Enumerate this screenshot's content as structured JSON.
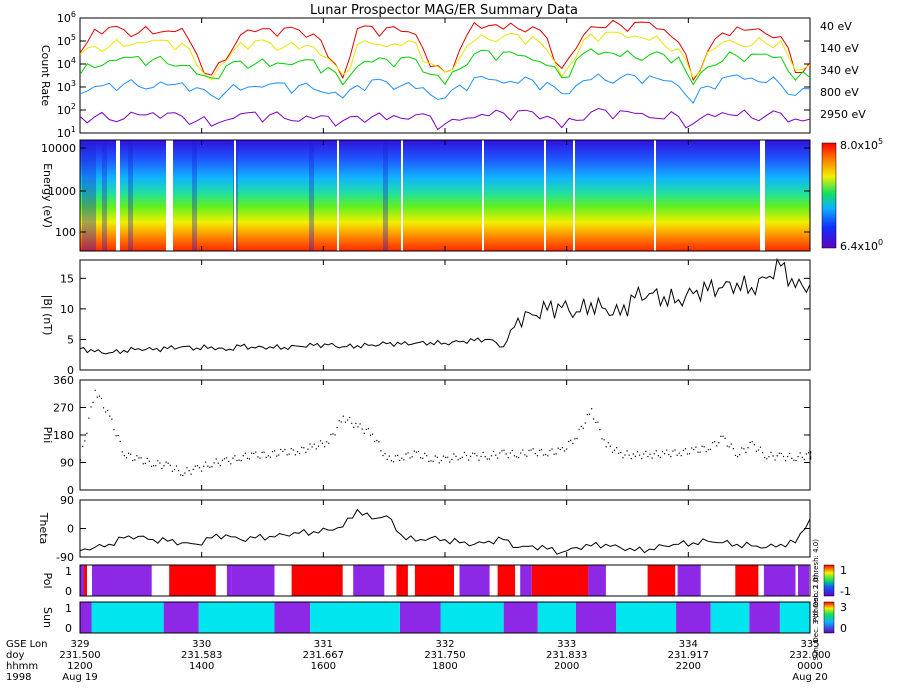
{
  "chart_data": {
    "title": "Lunar Prospector MAG/ER Summary Data",
    "panels": [
      {
        "type": "line",
        "ylabel": "Count Rate",
        "yscale": "log",
        "ylim": [
          10,
          1000000
        ],
        "yticks": [
          {
            "value": 10,
            "base": "10",
            "exp": "1"
          },
          {
            "value": 100,
            "base": "10",
            "exp": "2"
          },
          {
            "value": 1000,
            "base": "10",
            "exp": "3"
          },
          {
            "value": 10000,
            "base": "10",
            "exp": "4"
          },
          {
            "value": 100000,
            "base": "10",
            "exp": "5"
          },
          {
            "value": 1000000,
            "base": "10",
            "exp": "6"
          }
        ],
        "x": [
          0,
          2,
          4,
          6,
          8,
          10,
          12,
          14,
          16,
          18,
          20,
          22,
          24,
          26,
          28,
          30,
          32,
          34,
          36,
          38,
          40,
          42,
          44,
          46,
          48,
          50,
          52,
          54,
          56,
          58,
          60,
          62,
          64,
          66,
          68,
          70,
          72,
          74,
          76,
          78,
          80,
          82,
          84,
          86,
          88,
          90,
          92,
          94,
          96,
          98,
          100
        ],
        "series": [
          {
            "name": "40 eV",
            "color": "#e00000",
            "values": [
              30000,
              250000,
              300000,
              300000,
              310000,
              300000,
              290000,
              280000,
              20000,
              3000,
              20000,
              280000,
              290000,
              280000,
              270000,
              260000,
              250000,
              30000,
              3000,
              300000,
              320000,
              310000,
              300000,
              290000,
              10000,
              4000,
              30000,
              500000,
              500000,
              490000,
              480000,
              400000,
              100000,
              5000,
              50000,
              600000,
              550000,
              520000,
              500000,
              480000,
              300000,
              120000,
              3000,
              40000,
              180000,
              300000,
              280000,
              260000,
              240000,
              5000,
              10000
            ]
          },
          {
            "name": "140 eV",
            "color": "#e8e800",
            "values": [
              20000,
              60000,
              80000,
              85000,
              90000,
              85000,
              80000,
              75000,
              12000,
              3000,
              15000,
              70000,
              75000,
              75000,
              70000,
              70000,
              65000,
              15000,
              2500,
              60000,
              90000,
              85000,
              80000,
              75000,
              8000,
              3500,
              20000,
              150000,
              160000,
              150000,
              140000,
              120000,
              40000,
              4000,
              30000,
              200000,
              180000,
              170000,
              160000,
              150000,
              100000,
              50000,
              2000,
              25000,
              80000,
              100000,
              95000,
              90000,
              85000,
              4000,
              8000
            ]
          },
          {
            "name": "340 eV",
            "color": "#00d000",
            "values": [
              5000,
              10000,
              14000,
              15000,
              16000,
              15000,
              14000,
              13000,
              4000,
              2000,
              6000,
              12000,
              13000,
              12000,
              12000,
              11000,
              11000,
              6000,
              1500,
              12000,
              15000,
              14000,
              14000,
              13000,
              4000,
              2000,
              8000,
              25000,
              28000,
              26000,
              25000,
              22000,
              12000,
              2500,
              12000,
              35000,
              32000,
              30000,
              28000,
              26000,
              20000,
              15000,
              1200,
              10000,
              20000,
              25000,
              22000,
              20000,
              18000,
              2500,
              4000
            ]
          },
          {
            "name": "800 eV",
            "color": "#1e90ff",
            "values": [
              500,
              800,
              1100,
              1300,
              1500,
              1400,
              1300,
              1200,
              700,
              400,
              800,
              1100,
              1200,
              1100,
              1100,
              1000,
              1000,
              800,
              400,
              1000,
              1500,
              1400,
              1300,
              1300,
              600,
              300,
              900,
              2000,
              2300,
              2200,
              2000,
              1900,
              1200,
              400,
              1200,
              3000,
              2800,
              2500,
              2400,
              2300,
              1800,
              1500,
              300,
              1200,
              2000,
              2500,
              2200,
              2000,
              1900,
              500,
              700
            ]
          },
          {
            "name": "2950 eV",
            "color": "#8000c0",
            "values": [
              40,
              50,
              55,
              60,
              65,
              60,
              55,
              50,
              45,
              30,
              40,
              55,
              60,
              55,
              55,
              50,
              50,
              45,
              25,
              45,
              60,
              58,
              55,
              55,
              40,
              20,
              40,
              70,
              75,
              70,
              68,
              65,
              55,
              25,
              50,
              80,
              75,
              70,
              70,
              65,
              60,
              55,
              20,
              50,
              70,
              75,
              70,
              65,
              60,
              30,
              35
            ]
          }
        ]
      },
      {
        "type": "heatmap",
        "ylabel": "Energy (eV)",
        "yscale": "log",
        "yticks": [
          "100",
          "1000",
          "10000"
        ],
        "colorbar": {
          "max_base": "8.0x10",
          "max_exp": "5",
          "min_base": "6.4x10",
          "min_exp": "0"
        }
      },
      {
        "type": "line",
        "ylabel": "|B| (nT)",
        "ylim": [
          0,
          18
        ],
        "yticks": [
          "0",
          "5",
          "10",
          "15"
        ],
        "x": [
          0,
          2,
          4,
          6,
          8,
          10,
          12,
          14,
          16,
          18,
          20,
          22,
          24,
          26,
          28,
          30,
          32,
          34,
          36,
          38,
          40,
          42,
          44,
          46,
          48,
          50,
          52,
          54,
          56,
          58,
          60,
          62,
          64,
          66,
          68,
          70,
          72,
          74,
          76,
          78,
          80,
          82,
          84,
          86,
          88,
          90,
          92,
          94,
          96,
          98,
          100
        ],
        "values": [
          3.5,
          3,
          2.8,
          3.2,
          3.5,
          3.3,
          3.5,
          3.8,
          3.6,
          3.8,
          3.2,
          3.9,
          3.6,
          3.8,
          3.7,
          3.9,
          4,
          4.1,
          3.8,
          4,
          4.1,
          4.3,
          4.2,
          4.4,
          4.5,
          4.4,
          4.6,
          4.8,
          5,
          3.8,
          8.5,
          9,
          9.8,
          10.2,
          9.5,
          11,
          10,
          9,
          11.8,
          12.5,
          12,
          11.5,
          12.5,
          13,
          13.5,
          14.2,
          13.5,
          15,
          17,
          13.5,
          14
        ]
      },
      {
        "type": "scatter",
        "ylabel": "Phi",
        "ylim": [
          0,
          360
        ],
        "yticks": [
          "0",
          "90",
          "180",
          "270",
          "360"
        ],
        "x": [
          0,
          2,
          4,
          6,
          8,
          10,
          12,
          14,
          16,
          18,
          20,
          22,
          24,
          26,
          28,
          30,
          32,
          34,
          36,
          38,
          40,
          42,
          44,
          46,
          48,
          50,
          52,
          54,
          56,
          58,
          60,
          62,
          64,
          66,
          68,
          70,
          72,
          74,
          76,
          78,
          80,
          82,
          84,
          86,
          88,
          90,
          92,
          94,
          96,
          98,
          100
        ],
        "values": [
          100,
          330,
          240,
          120,
          100,
          90,
          80,
          60,
          70,
          90,
          95,
          110,
          115,
          120,
          125,
          130,
          145,
          160,
          240,
          210,
          185,
          100,
          110,
          120,
          105,
          100,
          115,
          110,
          115,
          120,
          120,
          125,
          125,
          130,
          180,
          260,
          150,
          120,
          115,
          118,
          120,
          125,
          130,
          140,
          170,
          120,
          150,
          115,
          110,
          110,
          115
        ]
      },
      {
        "type": "line",
        "ylabel": "Theta",
        "ylim": [
          -90,
          90
        ],
        "yticks": [
          "-90",
          "0",
          "90"
        ],
        "x": [
          0,
          2,
          4,
          6,
          8,
          10,
          12,
          14,
          16,
          18,
          20,
          22,
          24,
          26,
          28,
          30,
          32,
          34,
          36,
          38,
          40,
          42,
          44,
          46,
          48,
          50,
          52,
          54,
          56,
          58,
          60,
          62,
          64,
          66,
          68,
          70,
          72,
          74,
          76,
          78,
          80,
          82,
          84,
          86,
          88,
          90,
          92,
          94,
          96,
          98,
          100
        ],
        "values": [
          -70,
          -60,
          -50,
          -30,
          -25,
          -35,
          -40,
          -45,
          -50,
          -30,
          -20,
          -35,
          -30,
          -25,
          -20,
          -15,
          -10,
          -5,
          5,
          60,
          30,
          40,
          -20,
          -40,
          -30,
          -35,
          -45,
          -50,
          -40,
          -35,
          -60,
          -55,
          -65,
          -75,
          -60,
          -55,
          -50,
          -60,
          -70,
          -65,
          -55,
          -50,
          -45,
          -40,
          -45,
          -50,
          -55,
          -60,
          -50,
          -45,
          30
        ]
      },
      {
        "type": "bar-strip",
        "ylabel": "Pol",
        "yticks": [
          "0",
          "1"
        ],
        "colorbar_ticks": [
          "1",
          "-1"
        ],
        "segments": [
          {
            "start": 0,
            "end": 0.8,
            "value": -1
          },
          {
            "start": 0.8,
            "end": 1.4,
            "value": 1
          },
          {
            "start": 2.4,
            "end": 14.3,
            "value": -1
          },
          {
            "start": 17.8,
            "end": 27.1,
            "value": 1
          },
          {
            "start": 29.3,
            "end": 30.2,
            "value": -1
          },
          {
            "start": 30.2,
            "end": 38.8,
            "value": -1
          },
          {
            "start": 42.2,
            "end": 52.4,
            "value": 1
          },
          {
            "start": 54.5,
            "end": 60.7,
            "value": -1
          },
          {
            "start": 63.1,
            "end": 65.4,
            "value": 1
          },
          {
            "start": 66.8,
            "end": 74.6,
            "value": 1
          },
          {
            "start": 75.7,
            "end": 81.7,
            "value": -1
          },
          {
            "start": 83.3,
            "end": 86.8,
            "value": 1
          },
          {
            "start": 87.8,
            "end": 90.1,
            "value": -1
          },
          {
            "start": 90.1,
            "end": 101.4,
            "value": 1
          },
          {
            "start": 101.4,
            "end": 104.9,
            "value": -1
          },
          {
            "start": 113.2,
            "end": 118.7,
            "value": 1
          },
          {
            "start": 119.2,
            "end": 123.8,
            "value": -1
          },
          {
            "start": 130.7,
            "end": 135.3,
            "value": 1
          },
          {
            "start": 136.4,
            "end": 142.7,
            "value": -1
          },
          {
            "start": 143.2,
            "end": 145.4,
            "value": -1
          }
        ],
        "side_text": "Pol: Dec. 2 (thresh: 4.0)"
      },
      {
        "type": "bar-strip",
        "ylabel": "Sun",
        "yticks": [
          "0",
          "1"
        ],
        "colorbar_ticks": [
          "3",
          "0"
        ],
        "segments": [
          {
            "start": 0,
            "end": 2.3,
            "value": 0
          },
          {
            "start": 2.3,
            "end": 16.7,
            "value": 1
          },
          {
            "start": 16.7,
            "end": 23.7,
            "value": 0
          },
          {
            "start": 23.7,
            "end": 38.8,
            "value": 1
          },
          {
            "start": 38.8,
            "end": 45.9,
            "value": 0
          },
          {
            "start": 45.9,
            "end": 63.8,
            "value": 1
          },
          {
            "start": 63.8,
            "end": 71.9,
            "value": 0
          },
          {
            "start": 71.9,
            "end": 84.5,
            "value": 1
          },
          {
            "start": 84.5,
            "end": 91.3,
            "value": 0
          },
          {
            "start": 91.3,
            "end": 98.9,
            "value": 1
          },
          {
            "start": 98.9,
            "end": 106.9,
            "value": 0
          },
          {
            "start": 106.9,
            "end": 118.9,
            "value": 1
          },
          {
            "start": 118.9,
            "end": 125.8,
            "value": 0
          },
          {
            "start": 125.8,
            "end": 133.5,
            "value": 1
          },
          {
            "start": 133.5,
            "end": 139.6,
            "value": 0
          },
          {
            "start": 139.6,
            "end": 145.6,
            "value": 1
          }
        ],
        "side_text": "Sun: Dec. 3 (thresh: 1.0)"
      }
    ],
    "x_axis": {
      "row_labels": [
        "GSE Lon",
        "doy",
        "hhmm",
        "1998"
      ],
      "ticks": [
        {
          "lon": "329",
          "doy": "231.500",
          "hhmm": "1200",
          "date": "Aug 19"
        },
        {
          "lon": "330",
          "doy": "231.583",
          "hhmm": "1400",
          "date": ""
        },
        {
          "lon": "331",
          "doy": "231.667",
          "hhmm": "1600",
          "date": ""
        },
        {
          "lon": "332",
          "doy": "231.750",
          "hhmm": "1800",
          "date": ""
        },
        {
          "lon": "333",
          "doy": "231.833",
          "hhmm": "2000",
          "date": ""
        },
        {
          "lon": "334",
          "doy": "231.917",
          "hhmm": "2200",
          "date": ""
        },
        {
          "lon": "335",
          "doy": "232.000",
          "hhmm": "0000",
          "date": "Aug 20"
        }
      ]
    }
  }
}
